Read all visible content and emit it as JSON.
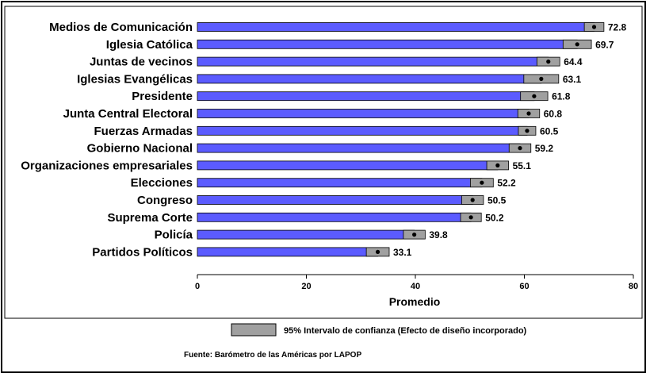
{
  "chart_data": {
    "type": "bar",
    "orientation": "horizontal",
    "categories": [
      "Medios de Comunicación",
      "Iglesia Católica",
      "Juntas de vecinos",
      "Iglesias Evangélicas",
      "Presidente",
      "Junta Central Electoral",
      "Fuerzas Armadas",
      "Gobierno Nacional",
      "Organizaciones empresariales",
      "Elecciones",
      "Congreso",
      "Suprema Corte",
      "Policía",
      "Partidos Políticos"
    ],
    "values": [
      72.8,
      69.7,
      64.4,
      63.1,
      61.8,
      60.8,
      60.5,
      59.2,
      55.1,
      52.2,
      50.5,
      50.2,
      39.8,
      33.1
    ],
    "value_labels": [
      "72.8",
      "69.7",
      "64.4",
      "63.1",
      "61.8",
      "60.8",
      "60.5",
      "59.2",
      "55.1",
      "52.2",
      "50.5",
      "50.2",
      "39.8",
      "33.1"
    ],
    "ci_low": [
      71.0,
      67.1,
      62.3,
      59.9,
      59.3,
      58.8,
      58.9,
      57.2,
      53.1,
      50.1,
      48.5,
      48.3,
      37.8,
      31.0
    ],
    "ci_high": [
      74.6,
      72.3,
      66.5,
      66.3,
      64.3,
      62.8,
      62.1,
      61.2,
      57.1,
      54.3,
      52.5,
      52.1,
      41.8,
      35.2
    ],
    "xlabel": "Promedio",
    "xlim": [
      0,
      80
    ],
    "xticks": [
      0,
      20,
      40,
      60,
      80
    ],
    "xtick_labels": [
      "0",
      "20",
      "40",
      "60",
      "80"
    ],
    "grid": false,
    "colors": {
      "bar": "#5b5bff",
      "ci_band": "#a0a0a0",
      "point": "#000000"
    },
    "legend": {
      "label": "95% Intervalo de confianza (Efecto de diseño incorporado)",
      "placement": "bottom"
    },
    "source": "Fuente: Barómetro de las Américas por LAPOP"
  }
}
